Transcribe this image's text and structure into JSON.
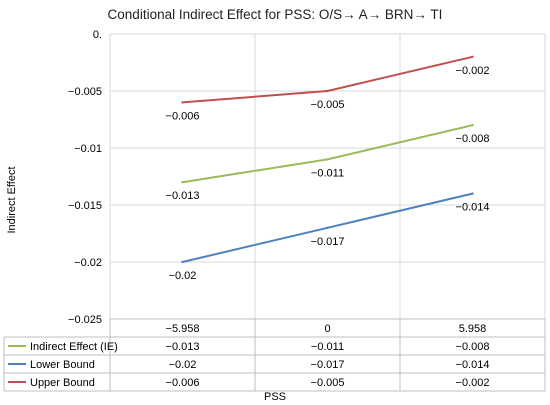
{
  "chart_data": {
    "type": "line",
    "title": "Conditional Indirect Effect for PSS: O/S→ A→ BRN→ TI",
    "xlabel": "PSS",
    "ylabel": "Indirect Effect",
    "categories": [
      "−5.958",
      "0",
      "5.958"
    ],
    "ylim": [
      -0.025,
      0
    ],
    "yticks": [
      0,
      -0.005,
      -0.01,
      -0.015,
      -0.02,
      -0.025
    ],
    "ytick_labels": [
      "0.",
      "−0.005",
      "−0.01",
      "−0.015",
      "−0.02",
      "−0.025"
    ],
    "grid": true,
    "legend": "data-table-bottom",
    "series": [
      {
        "name": "Indirect Effect (IE)",
        "color": "#9bbb59",
        "values": [
          -0.013,
          -0.011,
          -0.008
        ],
        "labels": [
          "−0.013",
          "−0.011",
          "−0.008"
        ]
      },
      {
        "name": "Lower Bound",
        "color": "#4f81bd",
        "values": [
          -0.02,
          -0.017,
          -0.014
        ],
        "labels": [
          "−0.02",
          "−0.017",
          "−0.014"
        ]
      },
      {
        "name": "Upper Bound",
        "color": "#c0504d",
        "values": [
          -0.006,
          -0.005,
          -0.002
        ],
        "labels": [
          "−0.006",
          "−0.005",
          "−0.002"
        ]
      }
    ]
  }
}
